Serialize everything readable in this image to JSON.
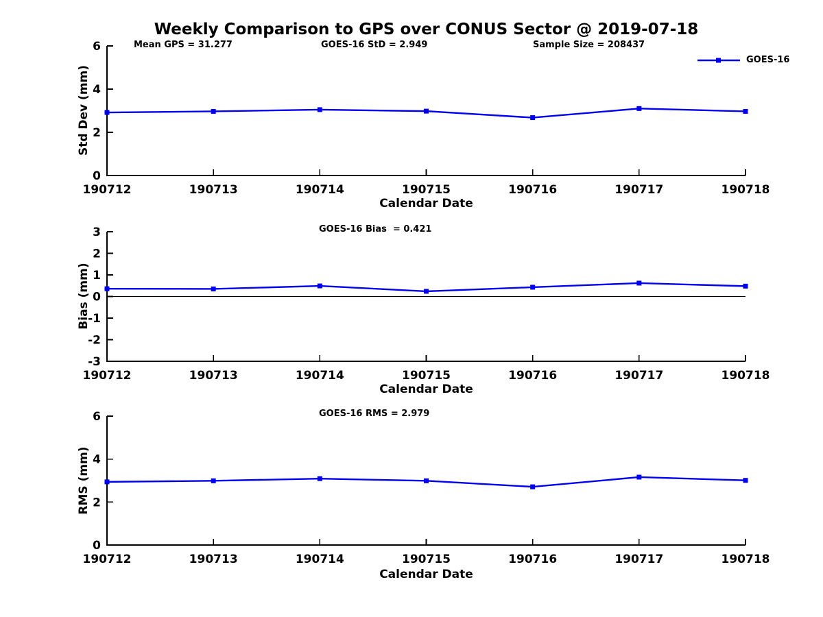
{
  "title": "Weekly Comparison to GPS over CONUS Sector @ 2019-07-18",
  "legend": {
    "label": "GOES-16",
    "color": "#0000EE",
    "marker": "square"
  },
  "chart_data": [
    {
      "id": "stddev",
      "type": "line",
      "categories": [
        "190712",
        "190713",
        "190714",
        "190715",
        "190716",
        "190717",
        "190718"
      ],
      "series": [
        {
          "name": "GOES-16",
          "values": [
            2.92,
            2.97,
            3.05,
            2.98,
            2.68,
            3.1,
            2.97
          ]
        }
      ],
      "xlabel": "Calendar Date",
      "ylabel": "Std Dev (mm)",
      "ylim": [
        0,
        6
      ],
      "yticks": [
        0,
        2,
        4,
        6
      ],
      "grid": false,
      "legend_position": "top-right",
      "annotations": [
        "Mean GPS = 31.277",
        "GOES-16 StD = 2.949",
        "Sample Size = 208437"
      ]
    },
    {
      "id": "bias",
      "type": "line",
      "categories": [
        "190712",
        "190713",
        "190714",
        "190715",
        "190716",
        "190717",
        "190718"
      ],
      "series": [
        {
          "name": "GOES-16",
          "values": [
            0.36,
            0.35,
            0.49,
            0.24,
            0.43,
            0.62,
            0.48
          ]
        }
      ],
      "xlabel": "Calendar Date",
      "ylabel": "Bias (mm)",
      "ylim": [
        -3,
        3
      ],
      "yticks": [
        -3,
        -2,
        -1,
        0,
        1,
        2,
        3
      ],
      "grid": false,
      "zero_line": true,
      "annotations": [
        "GOES-16 Bias  = 0.421"
      ]
    },
    {
      "id": "rms",
      "type": "line",
      "categories": [
        "190712",
        "190713",
        "190714",
        "190715",
        "190716",
        "190717",
        "190718"
      ],
      "series": [
        {
          "name": "GOES-16",
          "values": [
            2.94,
            2.99,
            3.09,
            2.99,
            2.71,
            3.16,
            3.01
          ]
        }
      ],
      "xlabel": "Calendar Date",
      "ylabel": "RMS (mm)",
      "ylim": [
        0,
        6
      ],
      "yticks": [
        0,
        2,
        4,
        6
      ],
      "grid": false,
      "annotations": [
        "GOES-16 RMS = 2.979"
      ]
    }
  ]
}
